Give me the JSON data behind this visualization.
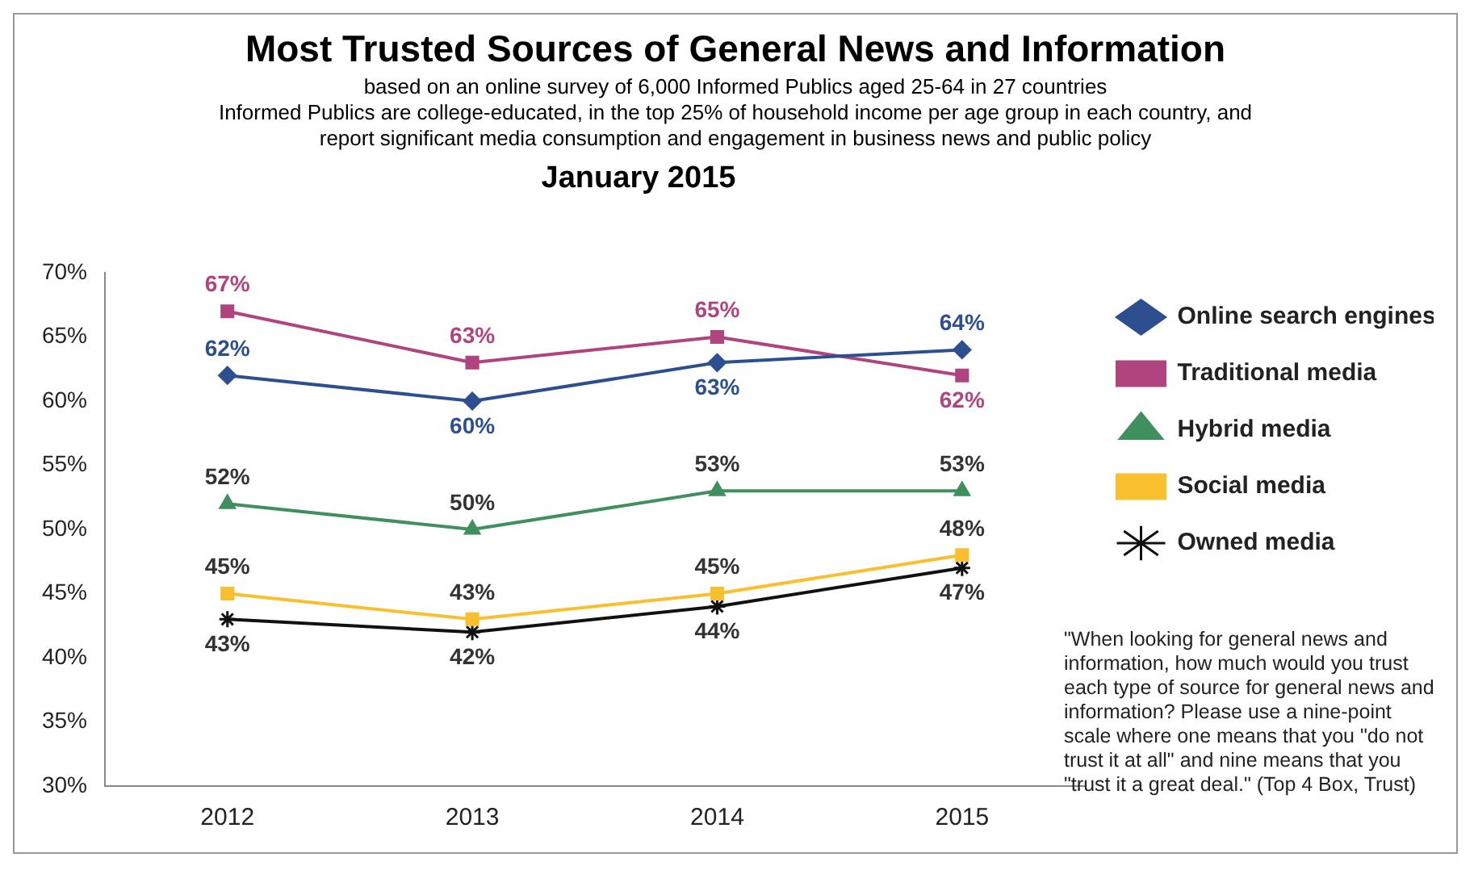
{
  "chart_data": {
    "type": "line",
    "title": "Most Trusted Sources of General News and Information",
    "subtitle": "based on an online survey of 6,000 Informed Publics aged 25-64 in 27 countries\nInformed Publics are college-educated, in the top 25% of household income per age group in each country, and\nreport significant media consumption and engagement in business news and public policy",
    "annotations": [
      "January 2015",
      "\"When looking for general news and information, how much would you trust each type of source for general news and information? Please use a nine-point scale where one means that you \"do not trust it at all\" and nine means that you \"trust it a great deal.\" (Top 4 Box, Trust)"
    ],
    "categories": [
      "2012",
      "2013",
      "2014",
      "2015"
    ],
    "series": [
      {
        "name": "Online search engines",
        "color": "#2e4f8f",
        "marker": "diamond",
        "values": [
          62,
          60,
          63,
          64
        ],
        "value_labels": [
          "62%",
          "60%",
          "63%",
          "64%"
        ]
      },
      {
        "name": "Traditional media",
        "color": "#b0447e",
        "marker": "square",
        "values": [
          67,
          63,
          65,
          62
        ],
        "value_labels": [
          "67%",
          "63%",
          "65%",
          "62%"
        ]
      },
      {
        "name": "Hybrid media",
        "color": "#3f8f5f",
        "marker": "triangle",
        "values": [
          52,
          50,
          53,
          53
        ],
        "value_labels": [
          "52%",
          "50%",
          "53%",
          "53%"
        ]
      },
      {
        "name": "Social media",
        "color": "#f9bf2f",
        "marker": "square",
        "values": [
          45,
          43,
          45,
          48
        ],
        "value_labels": [
          "45%",
          "43%",
          "45%",
          "48%"
        ]
      },
      {
        "name": "Owned media",
        "color": "#111111",
        "marker": "cross",
        "values": [
          43,
          42,
          44,
          47
        ],
        "value_labels": [
          "43%",
          "42%",
          "44%",
          "47%"
        ]
      }
    ],
    "ylim": [
      30,
      70
    ],
    "yticks": [
      {
        "value": 30,
        "label": "30%"
      },
      {
        "value": 35,
        "label": "35%"
      },
      {
        "value": 40,
        "label": "40%"
      },
      {
        "value": 45,
        "label": "45%"
      },
      {
        "value": 50,
        "label": "50%"
      },
      {
        "value": 55,
        "label": "55%"
      },
      {
        "value": 60,
        "label": "60%"
      },
      {
        "value": 65,
        "label": "65%"
      },
      {
        "value": 70,
        "label": "70%"
      }
    ],
    "grid": false,
    "legend": "right",
    "line_style": "solid"
  }
}
